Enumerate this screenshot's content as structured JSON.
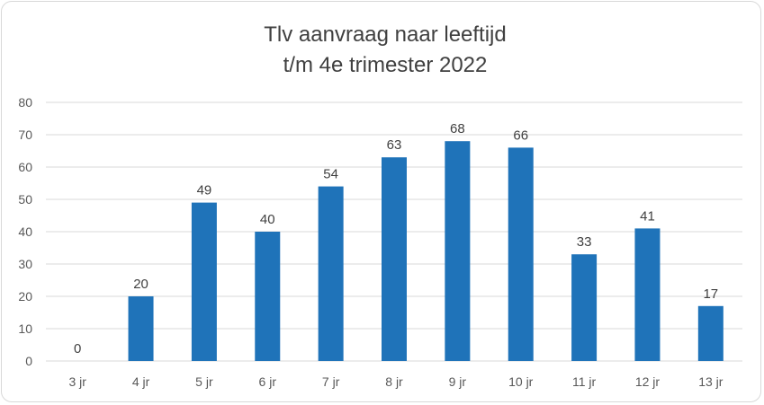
{
  "chart_data": {
    "type": "bar",
    "title_lines": [
      "Tlv aanvraag naar leeftijd",
      "t/m 4e trimester 2022"
    ],
    "categories": [
      "3 jr",
      "4 jr",
      "5 jr",
      "6 jr",
      "7 jr",
      "8 jr",
      "9 jr",
      "10 jr",
      "11 jr",
      "12 jr",
      "13 jr"
    ],
    "values": [
      0,
      20,
      49,
      40,
      54,
      63,
      68,
      66,
      33,
      41,
      17
    ],
    "xlabel": "",
    "ylabel": "",
    "ylim": [
      0,
      80
    ],
    "yticks": [
      0,
      10,
      20,
      30,
      40,
      50,
      60,
      70,
      80
    ],
    "grid": true,
    "data_labels": true,
    "bar_color": "#1f73b9",
    "grid_color": "#d9d9d9"
  }
}
